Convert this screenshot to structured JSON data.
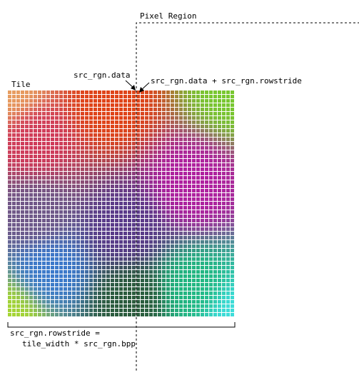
{
  "labels": {
    "pixel_region": "Pixel Region",
    "tile": "Tile",
    "src_data": "src_rgn.data",
    "src_data_plus_rowstride": "src_rgn.data + src_rgn.rowstride",
    "rowstride_line1": "src_rgn.rowstride =",
    "rowstride_line2": "tile_width * src_rgn.bpp"
  },
  "tile_grid": {
    "columns": 53,
    "rows": 53,
    "corner_colors": {
      "top_left": "#e8a060",
      "top_right": "#78c830",
      "bottom_left": "#a8d830",
      "bottom_right": "#40e0e0"
    },
    "interior_colors": {
      "upper_left": "#d03a5a",
      "upper_center": "#e04418",
      "right_mid": "#b020a0",
      "left_mid": "#705888",
      "center": "#5a3a8a",
      "lower_left": "#3a7ad0",
      "lower_center": "#2a5a3a",
      "lower_right": "#20b880"
    },
    "grid_line_color": "#ffffff"
  },
  "colors": {
    "line": "#000000",
    "background": "#ffffff"
  }
}
